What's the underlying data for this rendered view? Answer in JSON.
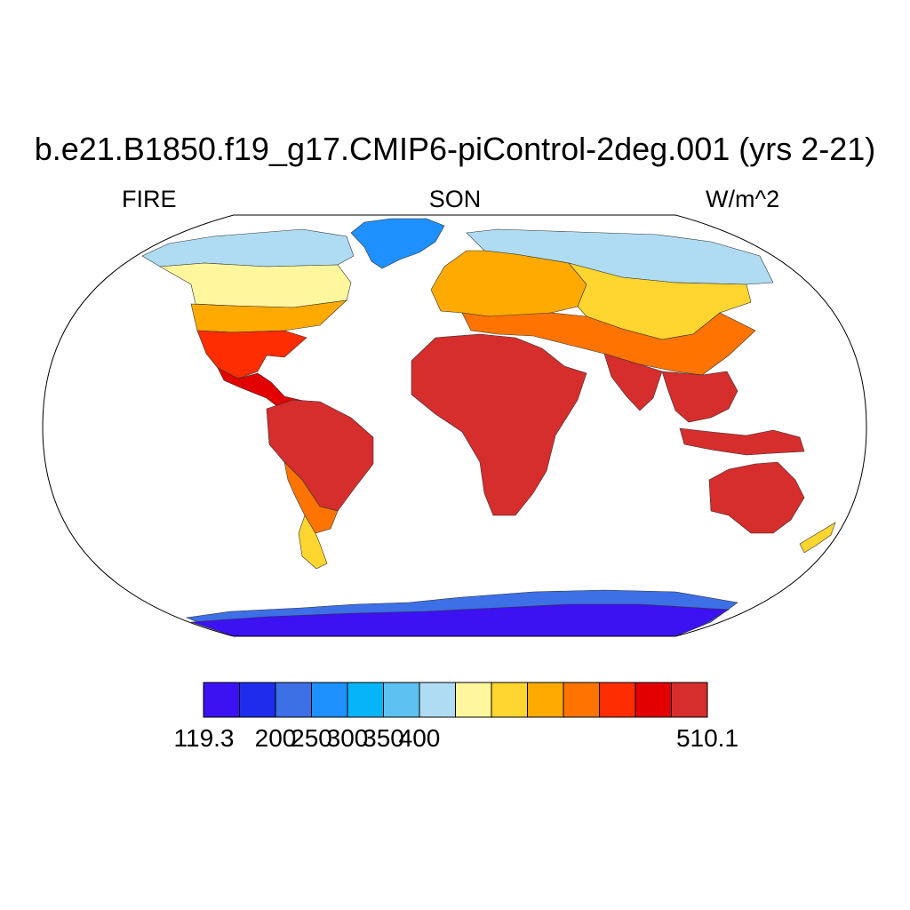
{
  "title": "b.e21.B1850.f19_g17.CMIP6-piControl-2deg.001 (yrs 2-21)",
  "left_label": "FIRE",
  "center_label": "SON",
  "right_label": "W/m^2",
  "colorbar": {
    "colors": [
      "#3d12f2",
      "#1e2cec",
      "#3d6fe6",
      "#1f90ff",
      "#06b5f9",
      "#5dc2f1",
      "#afdcf2",
      "#fff69d",
      "#ffd52f",
      "#ffaa00",
      "#ff7400",
      "#ff2d00",
      "#e20000",
      "#d62d2d"
    ],
    "labels": [
      "119.3",
      "200",
      "250",
      "300",
      "350",
      "400",
      "510.1"
    ],
    "label_box_index": [
      0,
      2,
      3,
      4,
      5,
      6,
      7
    ]
  },
  "regions": [
    {
      "name": "antarctica",
      "color": "#3d12f2"
    },
    {
      "name": "antarctica-coast",
      "color": "#3d6fe6"
    },
    {
      "name": "greenland",
      "color": "#1f90ff"
    },
    {
      "name": "north-america-arctic",
      "color": "#afdcf2"
    },
    {
      "name": "north-america-boreal",
      "color": "#fff69d"
    },
    {
      "name": "north-america-temperate",
      "color": "#ffaa00"
    },
    {
      "name": "north-america-south",
      "color": "#ff2d00"
    },
    {
      "name": "central-america",
      "color": "#e20000"
    },
    {
      "name": "south-america",
      "color": "#d62d2d"
    },
    {
      "name": "south-america-south",
      "color": "#ff7400"
    },
    {
      "name": "patagonia",
      "color": "#ffd52f"
    },
    {
      "name": "europe",
      "color": "#ffaa00"
    },
    {
      "name": "asia-north",
      "color": "#afdcf2"
    },
    {
      "name": "asia-central",
      "color": "#ffd52f"
    },
    {
      "name": "asia-south",
      "color": "#ff7400"
    },
    {
      "name": "africa",
      "color": "#d62d2d"
    },
    {
      "name": "india",
      "color": "#d62d2d"
    },
    {
      "name": "southeast-asia",
      "color": "#d62d2d"
    },
    {
      "name": "australia",
      "color": "#d62d2d"
    },
    {
      "name": "new-zealand",
      "color": "#ffd52f"
    }
  ]
}
